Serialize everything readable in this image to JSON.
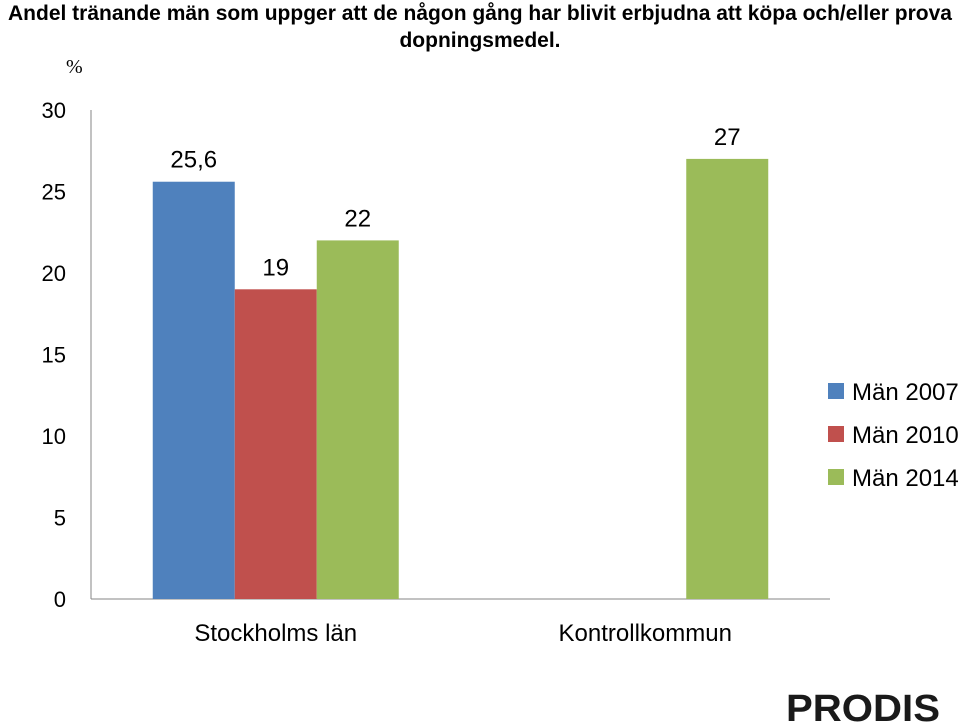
{
  "chart_data": {
    "type": "bar",
    "title_line1": "Andel tränande män som uppger att de någon gång har blivit erbjudna att köpa och/eller prova",
    "title_line2": "dopningsmedel.",
    "ylabel": "%",
    "categories": [
      "Stockholms län",
      "Kontrollkommun"
    ],
    "series": [
      {
        "name": "Män 2007",
        "color": "#4f81bd",
        "values": [
          25.6,
          null
        ],
        "labels": [
          "25,6",
          ""
        ]
      },
      {
        "name": "Män 2010",
        "color": "#c0504d",
        "values": [
          19,
          null
        ],
        "labels": [
          "19",
          ""
        ]
      },
      {
        "name": "Män 2014",
        "color": "#9bbb59",
        "values": [
          22,
          27
        ],
        "labels": [
          "22",
          "27"
        ]
      }
    ],
    "ylim": [
      0,
      30
    ],
    "yticks": [
      "0",
      "5",
      "10",
      "15",
      "20",
      "25",
      "30"
    ],
    "grid": false,
    "legend": "right"
  },
  "logo": {
    "text": "PRODIS",
    "color_dark": "#1a1a1a",
    "color_accent": "#d41f26"
  }
}
